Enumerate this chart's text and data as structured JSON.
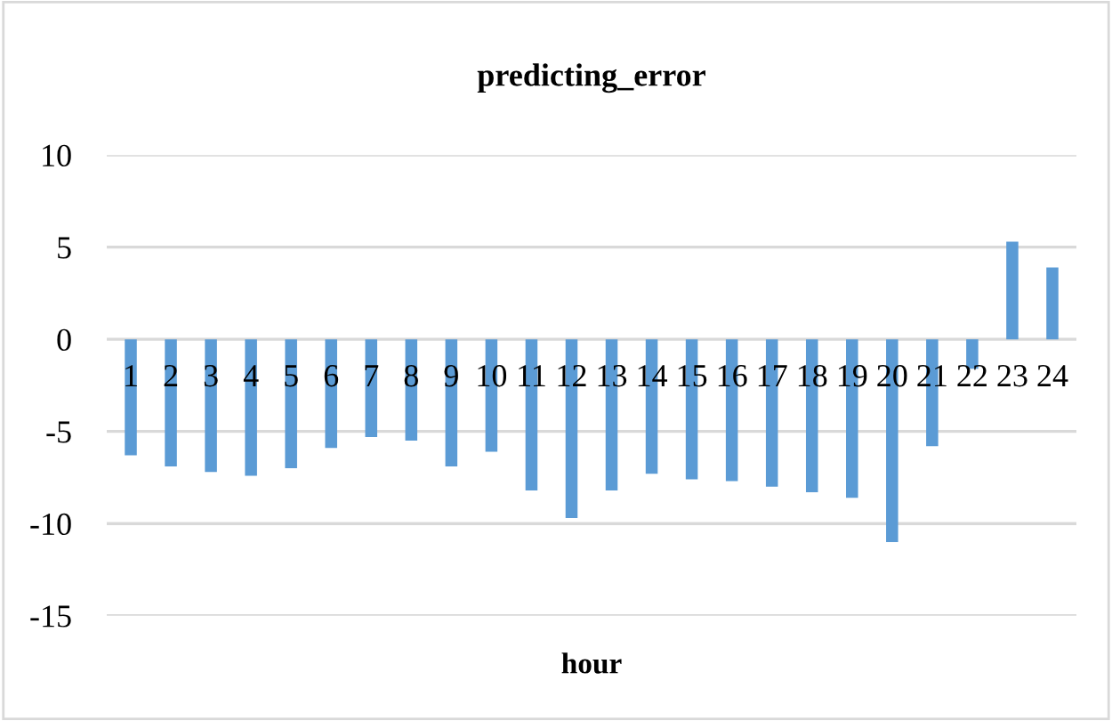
{
  "chart_data": {
    "type": "bar",
    "title": "predicting_error",
    "xlabel": "hour",
    "categories": [
      "1",
      "2",
      "3",
      "4",
      "5",
      "6",
      "7",
      "8",
      "9",
      "10",
      "11",
      "12",
      "13",
      "14",
      "15",
      "16",
      "17",
      "18",
      "19",
      "20",
      "21",
      "22",
      "23",
      "24"
    ],
    "values": [
      -6.3,
      -6.9,
      -7.2,
      -7.4,
      -7.0,
      -5.9,
      -5.3,
      -5.5,
      -6.9,
      -6.1,
      -8.2,
      -9.7,
      -8.2,
      -7.3,
      -7.6,
      -7.7,
      -8.0,
      -8.3,
      -8.6,
      -11.0,
      -5.8,
      -1.6,
      5.3,
      3.9
    ],
    "color": "#5b9bd5",
    "ylim": [
      -15,
      10
    ],
    "yticks": [
      -15,
      -10,
      -5,
      0,
      5,
      10
    ],
    "grid": "y",
    "legend": false
  }
}
